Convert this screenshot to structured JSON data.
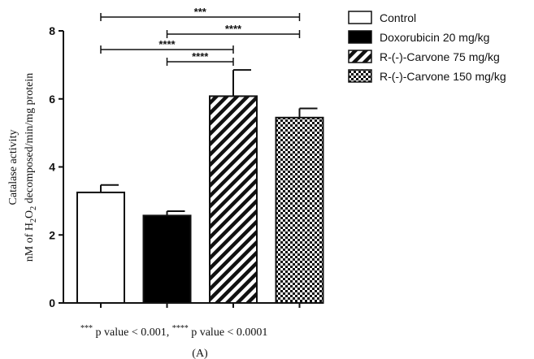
{
  "chart_data": {
    "type": "bar",
    "categories": [
      "Control",
      "Doxorubicin 20 mg/kg",
      "R-(-)-Carvone 75 mg/kg",
      "R-(-)-Carvone 150 mg/kg"
    ],
    "values": [
      3.25,
      2.57,
      6.08,
      5.45
    ],
    "errors": [
      0.22,
      0.13,
      0.77,
      0.27
    ],
    "patterns": [
      "white",
      "black",
      "diagonal-stripes",
      "checkerboard"
    ],
    "ylabel_line1": "Catalase activity",
    "ylabel_line2_a": "nM of H",
    "ylabel_line2_sub1": "2",
    "ylabel_line2_b": "O",
    "ylabel_line2_sub2": "2",
    "ylabel_line2_c": " decomposed/min/mg protein",
    "ylim": [
      0,
      8
    ],
    "yticks": [
      0,
      2,
      4,
      6,
      8
    ],
    "legend_position": "top-right",
    "comparisons": [
      {
        "from": 0,
        "to": 3,
        "label": "***"
      },
      {
        "from": 1,
        "to": 3,
        "label": "****"
      },
      {
        "from": 0,
        "to": 2,
        "label": "****"
      },
      {
        "from": 1,
        "to": 2,
        "label": "****"
      }
    ],
    "footnote": {
      "sup1": "***",
      "text1": " p value < 0.001, ",
      "sup2": "****",
      "text2": " p value < 0.0001"
    },
    "panel_label": "(A)"
  }
}
